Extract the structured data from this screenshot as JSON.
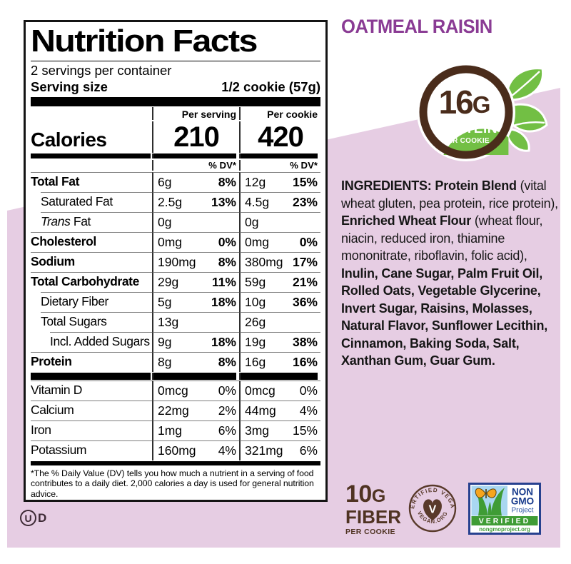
{
  "product": {
    "flavor": "OATMEAL RAISIN"
  },
  "colors": {
    "background_pink": "#e6cde3",
    "flavor_purple": "#8a3b94",
    "badge_brown": "#4a2c1b",
    "badge_green": "#72bf44",
    "nongmo_navy": "#27418f",
    "nongmo_sky": "#a9d7f1",
    "nongmo_green": "#3f9c35",
    "butterfly_orange": "#f6a51f",
    "fiber_brown": "#4f3322"
  },
  "panel": {
    "title": "Nutrition Facts",
    "servings_per_container": "2 servings per container",
    "serving_size_label": "Serving size",
    "serving_size_value": "1/2 cookie (57g)",
    "columns": {
      "per_serving": "Per serving",
      "per_cookie": "Per cookie"
    },
    "calories": {
      "label": "Calories",
      "per_serving": "210",
      "per_cookie": "420"
    },
    "dv_header": "% DV*",
    "rows": [
      {
        "label": "Total Fat",
        "bold": true,
        "indent": 0,
        "ps": "6g",
        "ps_dv": "8%",
        "pc": "12g",
        "pc_dv": "15%"
      },
      {
        "label": "Saturated Fat",
        "bold": false,
        "indent": 1,
        "ps": "2.5g",
        "ps_dv": "13%",
        "pc": "4.5g",
        "pc_dv": "23%"
      },
      {
        "italic_prefix": "Trans",
        "label": "Fat",
        "bold": false,
        "indent": 1,
        "ps": "0g",
        "ps_dv": "",
        "pc": "0g",
        "pc_dv": ""
      },
      {
        "label": "Cholesterol",
        "bold": true,
        "indent": 0,
        "ps": "0mg",
        "ps_dv": "0%",
        "pc": "0mg",
        "pc_dv": "0%"
      },
      {
        "label": "Sodium",
        "bold": true,
        "indent": 0,
        "ps": "190mg",
        "ps_dv": "8%",
        "pc": "380mg",
        "pc_dv": "17%"
      },
      {
        "label": "Total Carbohydrate",
        "bold": true,
        "indent": 0,
        "ps": "29g",
        "ps_dv": "11%",
        "pc": "59g",
        "pc_dv": "21%"
      },
      {
        "label": "Dietary Fiber",
        "bold": false,
        "indent": 1,
        "ps": "5g",
        "ps_dv": "18%",
        "pc": "10g",
        "pc_dv": "36%"
      },
      {
        "label": "Total Sugars",
        "bold": false,
        "indent": 1,
        "ps": "13g",
        "ps_dv": "",
        "pc": "26g",
        "pc_dv": ""
      },
      {
        "label": "Incl. Added Sugars",
        "bold": false,
        "indent": 2,
        "ps": "9g",
        "ps_dv": "18%",
        "pc": "19g",
        "pc_dv": "38%"
      },
      {
        "label": "Protein",
        "bold": true,
        "indent": 0,
        "ps": "8g",
        "ps_dv": "8%",
        "pc": "16g",
        "pc_dv": "16%"
      }
    ],
    "vitamins": [
      {
        "label": "Vitamin D",
        "bold": false,
        "indent": 0,
        "ps": "0mcg",
        "ps_dv": "0%",
        "pc": "0mcg",
        "pc_dv": "0%"
      },
      {
        "label": "Calcium",
        "bold": false,
        "indent": 0,
        "ps": "22mg",
        "ps_dv": "2%",
        "pc": "44mg",
        "pc_dv": "4%"
      },
      {
        "label": "Iron",
        "bold": false,
        "indent": 0,
        "ps": "1mg",
        "ps_dv": "6%",
        "pc": "3mg",
        "pc_dv": "15%"
      },
      {
        "label": "Potassium",
        "bold": false,
        "indent": 0,
        "ps": "160mg",
        "ps_dv": "4%",
        "pc": "321mg",
        "pc_dv": "6%"
      }
    ],
    "footnote": "*The % Daily Value (DV) tells you how much a nutrient in a serving of food contributes to a daily diet. 2,000 calories a day is used for general nutrition advice."
  },
  "protein_badge": {
    "amount": "16",
    "unit": "G",
    "label": "PROTEIN",
    "sub": "PER COOKIE"
  },
  "ingredients": {
    "segments": [
      {
        "text": "INGREDIENTS: Protein Blend ",
        "bold": true
      },
      {
        "text": "(vital wheat gluten, pea protein, rice protein), ",
        "bold": false
      },
      {
        "text": "Enriched Wheat Flour ",
        "bold": true
      },
      {
        "text": "(wheat flour, niacin, reduced iron, thiamine mononitrate, riboflavin, folic acid), ",
        "bold": false
      },
      {
        "text": "Inulin, Cane Sugar, Palm Fruit Oil, Rolled Oats, Vegetable Glycerine, Invert Sugar, Raisins, Molasses, Natural Flavor, Sunflower Lecithin, Cinnamon, Baking Soda, Salt, Xanthan Gum, Guar Gum.",
        "bold": true
      }
    ]
  },
  "fiber_badge": {
    "amount": "10",
    "unit": "G",
    "label": "FIBER",
    "sub": "PER COOKIE"
  },
  "vegan_badge": {
    "top": "CERTIFIED VEGAN",
    "bottom": "VEGAN.ORG",
    "center": "V"
  },
  "nongmo_badge": {
    "line1": "NON",
    "line2": "GMO",
    "line3": "Project",
    "verified": "VERIFIED",
    "url": "nongmoproject.org"
  },
  "kosher": {
    "letter": "U",
    "suffix": "D"
  }
}
